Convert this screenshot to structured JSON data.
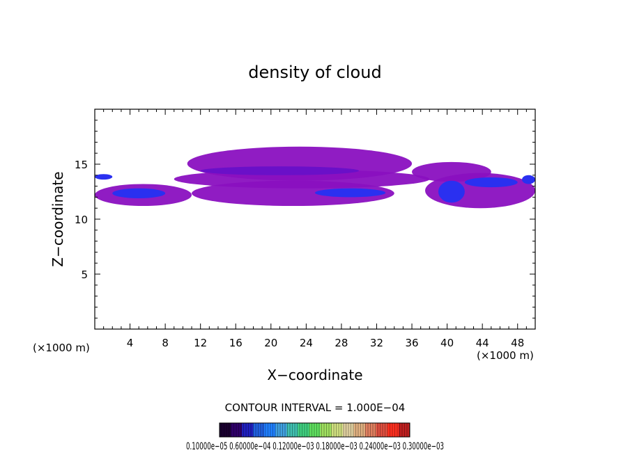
{
  "chart_data": {
    "type": "heatmap",
    "title": "density of cloud",
    "xlabel": "X−coordinate",
    "ylabel": "Z−coordinate",
    "x_unit_left": "(×1000 m)",
    "x_unit_right": "(×1000 m)",
    "xlim": [
      0,
      50
    ],
    "ylim": [
      0,
      20
    ],
    "x_ticks": [
      4,
      8,
      12,
      16,
      20,
      24,
      28,
      32,
      36,
      40,
      44,
      48
    ],
    "y_ticks": [
      5,
      10,
      15
    ],
    "contour_interval_text": "CONTOUR INTERVAL = 1.000E−04",
    "colorbar_labels_text": "0.10000e−05 0.60000e−04 0.12000e−03 0.18000e−03 0.24000e−03 0.30000e−03",
    "cloud_regions": [
      {
        "x": [
          10.5,
          36
        ],
        "z": [
          13.5,
          16.6
        ],
        "level": "low"
      },
      {
        "x": [
          9,
          38
        ],
        "z": [
          12.8,
          14.5
        ],
        "level": "low"
      },
      {
        "x": [
          0,
          11
        ],
        "z": [
          11.2,
          13.2
        ],
        "level": "low"
      },
      {
        "x": [
          11,
          34
        ],
        "z": [
          11.2,
          13.5
        ],
        "level": "low"
      },
      {
        "x": [
          36,
          45
        ],
        "z": [
          13.4,
          15.2
        ],
        "level": "low"
      },
      {
        "x": [
          37.5,
          50
        ],
        "z": [
          11.0,
          14.2
        ],
        "level": "low"
      },
      {
        "x": [
          12,
          30
        ],
        "z": [
          14.0,
          14.8
        ],
        "level": "mid"
      },
      {
        "x": [
          2,
          8
        ],
        "z": [
          11.9,
          12.8
        ],
        "level": "high"
      },
      {
        "x": [
          25,
          33
        ],
        "z": [
          12.0,
          12.8
        ],
        "level": "high"
      },
      {
        "x": [
          0,
          2
        ],
        "z": [
          13.6,
          14.1
        ],
        "level": "high"
      },
      {
        "x": [
          42,
          48
        ],
        "z": [
          12.9,
          13.8
        ],
        "level": "high"
      },
      {
        "x": [
          48.5,
          50
        ],
        "z": [
          13.2,
          14.0
        ],
        "level": "high"
      },
      {
        "x": [
          39,
          42
        ],
        "z": [
          11.5,
          13.5
        ],
        "level": "high"
      }
    ],
    "colors": {
      "low": "#8a10c0",
      "mid": "#6a10c8",
      "high": "#2a30f0",
      "peak": "#40a0ff"
    },
    "colorbar_colors": [
      "#1a0030",
      "#30006a",
      "#2020c0",
      "#2060e0",
      "#2080ff",
      "#40a0e0",
      "#40c0b0",
      "#40d080",
      "#60e060",
      "#a0e060",
      "#d0e080",
      "#e0d0a0",
      "#e0b080",
      "#e08060",
      "#e05040",
      "#ff3020",
      "#c02020"
    ]
  }
}
